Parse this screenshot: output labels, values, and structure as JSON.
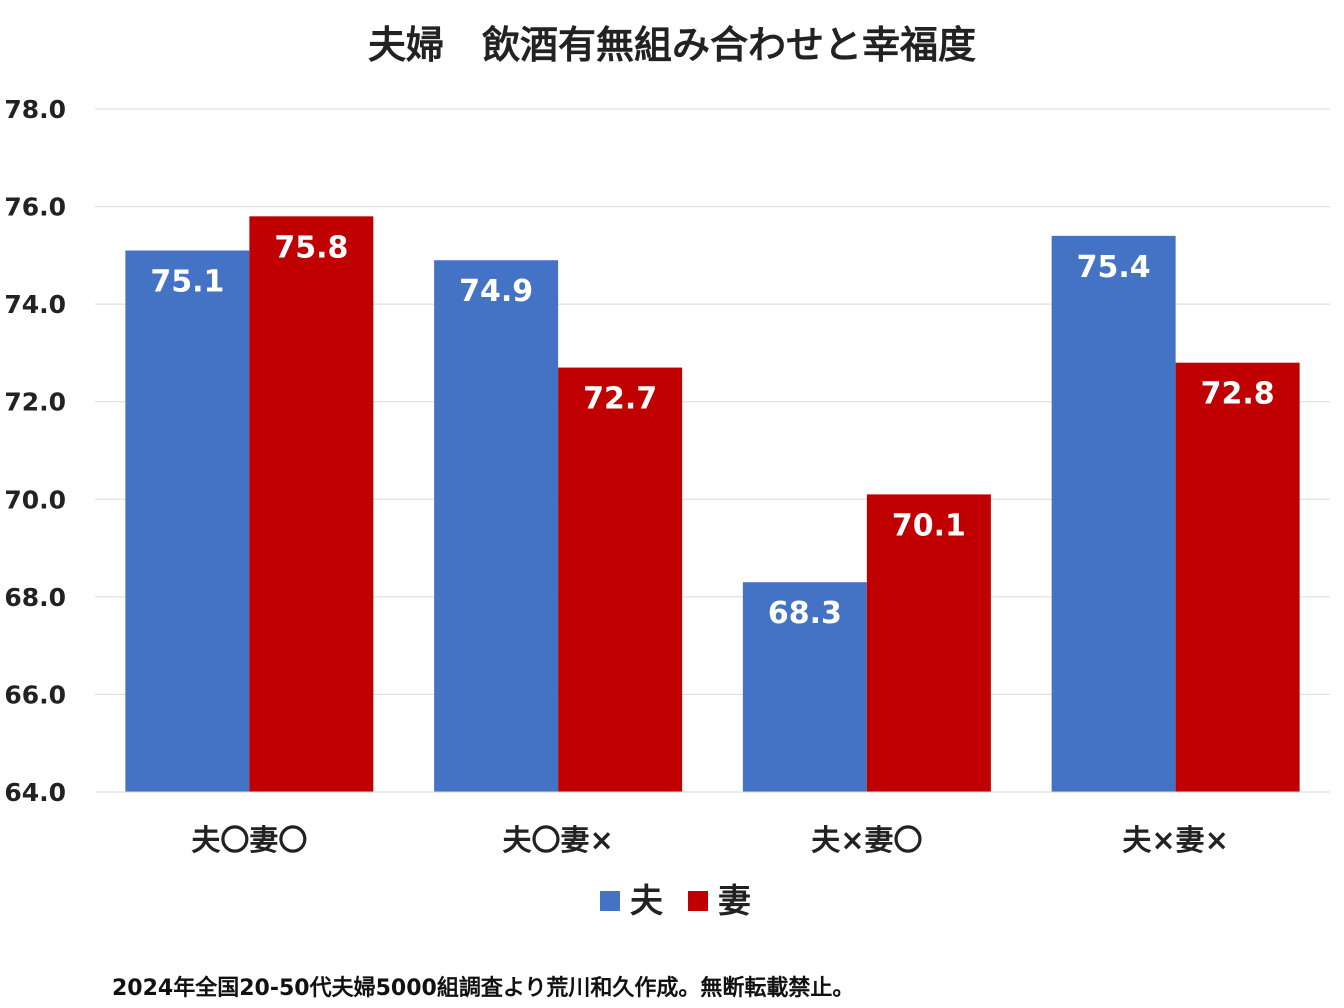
{
  "chart_data": {
    "type": "bar",
    "title": "夫婦　飲酒有無組み合わせと幸福度",
    "categories": [
      "夫〇妻〇",
      "夫〇妻×",
      "夫×妻〇",
      "夫×妻×"
    ],
    "series": [
      {
        "name": "夫",
        "values": [
          75.1,
          74.9,
          68.3,
          75.4
        ],
        "color": "#4472C4"
      },
      {
        "name": "妻",
        "values": [
          75.8,
          72.7,
          70.1,
          72.8
        ],
        "color": "#C00000"
      }
    ],
    "ylim": [
      64.0,
      78.0
    ],
    "yticks": [
      "64.0",
      "66.0",
      "68.0",
      "70.0",
      "72.0",
      "74.0",
      "76.0",
      "78.0"
    ],
    "grid": true,
    "legend": "bottom",
    "data_labels": true,
    "xlabel": "",
    "ylabel": ""
  },
  "footer": "2024年全国20-50代夫婦5000組調査より荒川和久作成。無断転載禁止。"
}
